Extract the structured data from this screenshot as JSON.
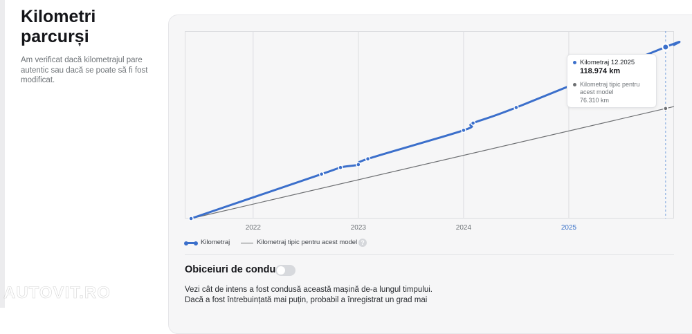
{
  "section": {
    "title": "Kilometri parcurși",
    "description": "Am verificat dacă kilometrajul pare autentic sau dacă se poate să fi fost modificat."
  },
  "chart_data": {
    "type": "line",
    "x_ticks": [
      "2022",
      "2023",
      "2024",
      "2025"
    ],
    "highlighted_tick": "2025",
    "xlim": [
      2021.35,
      2026.0
    ],
    "ylim": [
      0,
      130000
    ],
    "series": [
      {
        "name": "Kilometraj",
        "color": "#3b6fcb",
        "points": [
          [
            2021.41,
            0
          ],
          [
            2022.65,
            30800
          ],
          [
            2022.83,
            35400
          ],
          [
            2023.0,
            37400
          ],
          [
            2023.09,
            41400
          ],
          [
            2024.0,
            61200
          ],
          [
            2024.09,
            66200
          ],
          [
            2024.5,
            77000
          ],
          [
            2025.92,
            118974
          ]
        ]
      },
      {
        "name": "Kilometraj tipic pentru acest model",
        "color": "#6d6f72",
        "points": [
          [
            2021.41,
            0
          ],
          [
            2025.92,
            76310
          ]
        ]
      }
    ],
    "cursor_x": 2025.92,
    "tooltip": {
      "label1": "Kilometraj 12.2025",
      "value1": "118.974 km",
      "label2": "Kilometraj tipic pentru acest model",
      "value2": "76.310 km"
    }
  },
  "legend": {
    "item1": "Kilometraj",
    "item2": "Kilometraj tipic pentru acest model",
    "help_icon": "?"
  },
  "driving": {
    "title": "Obiceiuri de condus",
    "toggle_on": false,
    "text": "Vezi cât de intens a fost condusă această mașină de-a lungul timpului. Dacă a fost întrebuințată mai puțin, probabil a înregistrat un grad mai"
  },
  "watermark": "AUTOVIT.RO",
  "colors": {
    "accent": "#3b6fcb",
    "typical": "#6d6f72",
    "card_bg": "#f6f6f7"
  }
}
